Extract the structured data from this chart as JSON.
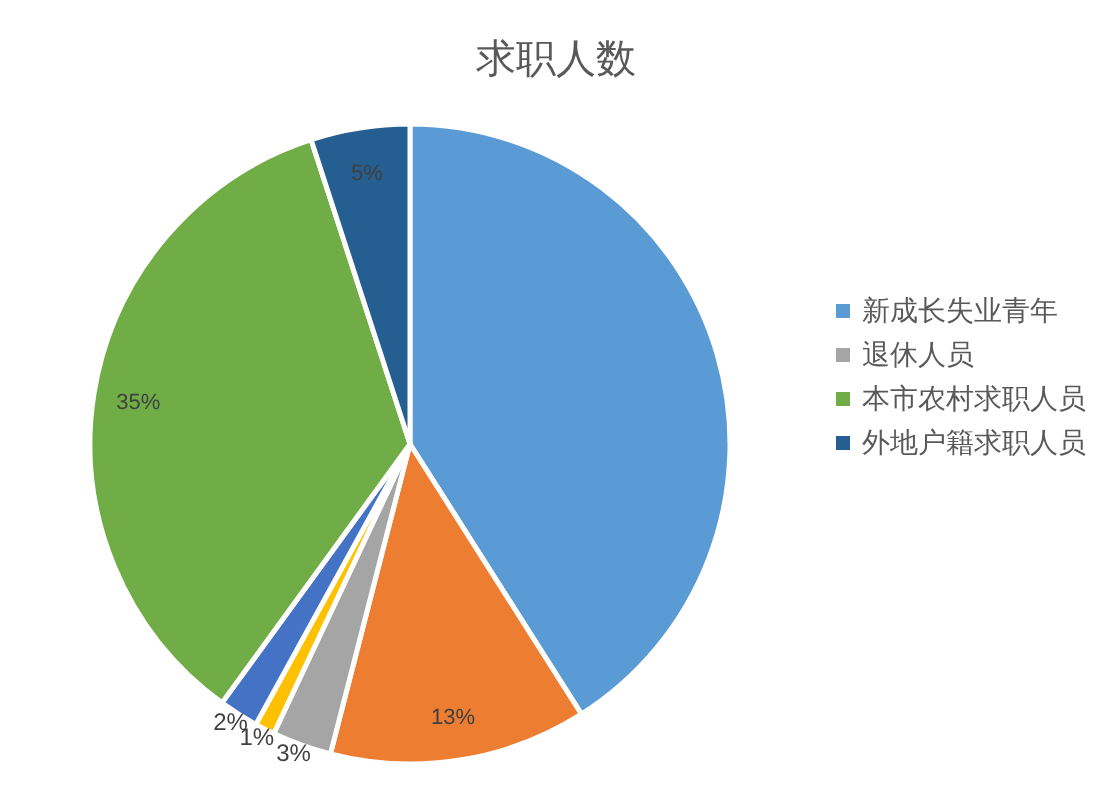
{
  "chart_data": {
    "type": "pie",
    "title": "求职人数",
    "categories": [
      "新成长失业青年",
      null,
      "退休人员",
      null,
      null,
      "本市农村求职人员",
      "外地户籍求职人员"
    ],
    "values": [
      41,
      13,
      3,
      1,
      2,
      35,
      5
    ],
    "colors": [
      "#5b9bd5",
      "#ed7d31",
      "#a5a5a5",
      "#ffc000",
      "#4472c4",
      "#70ad47",
      "#255e91"
    ],
    "value_labels": [
      null,
      "13%",
      "3%",
      "1%",
      "2%",
      "35%",
      "5%"
    ],
    "legend": "right"
  }
}
